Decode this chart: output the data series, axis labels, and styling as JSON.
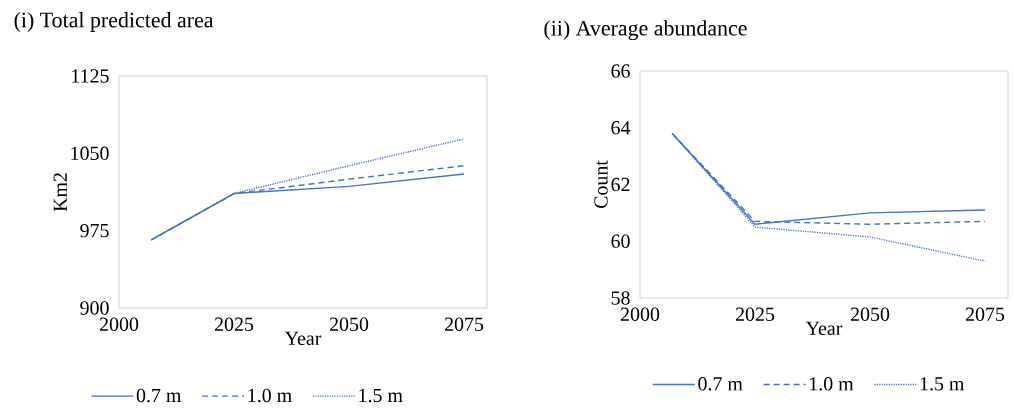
{
  "chart_data": [
    {
      "type": "line",
      "title": "(i) Total predicted area",
      "xlabel": "Year",
      "ylabel": "Km2",
      "x": [
        2007,
        2025,
        2050,
        2075
      ],
      "xlim": [
        2000,
        2080
      ],
      "xticks": [
        2000,
        2025,
        2050,
        2075
      ],
      "ylim": [
        900,
        1125
      ],
      "yticks": [
        900,
        975,
        1050,
        1125
      ],
      "legend": "bottom",
      "marker": "none",
      "grid": false,
      "series": [
        {
          "name": "0.7 m",
          "color": "#4472c4",
          "line_style": "solid",
          "values": [
            966,
            1011,
            1018,
            1030
          ]
        },
        {
          "name": "1.0 m",
          "color": "#4472c4",
          "line_style": "dashed",
          "values": [
            966,
            1011,
            1025,
            1038
          ]
        },
        {
          "name": "1.5 m",
          "color": "#4472c4",
          "line_style": "dotted",
          "values": [
            966,
            1011,
            1038,
            1064
          ]
        }
      ]
    },
    {
      "type": "line",
      "title": "(ii) Average abundance",
      "xlabel": "Year",
      "ylabel": "Count",
      "x": [
        2007,
        2025,
        2050,
        2075
      ],
      "xlim": [
        2000,
        2080
      ],
      "xticks": [
        2000,
        2025,
        2050,
        2075
      ],
      "ylim": [
        58,
        66
      ],
      "yticks": [
        58,
        60,
        62,
        64,
        66
      ],
      "legend": "bottom",
      "marker": "none",
      "grid": false,
      "series": [
        {
          "name": "0.7 m",
          "color": "#4472c4",
          "line_style": "solid",
          "values": [
            63.8,
            60.6,
            61.0,
            61.1
          ]
        },
        {
          "name": "1.0 m",
          "color": "#4472c4",
          "line_style": "dashed",
          "values": [
            63.8,
            60.7,
            60.6,
            60.7
          ]
        },
        {
          "name": "1.5 m",
          "color": "#4472c4",
          "line_style": "dotted",
          "values": [
            63.8,
            60.5,
            60.15,
            59.3
          ]
        }
      ]
    }
  ]
}
